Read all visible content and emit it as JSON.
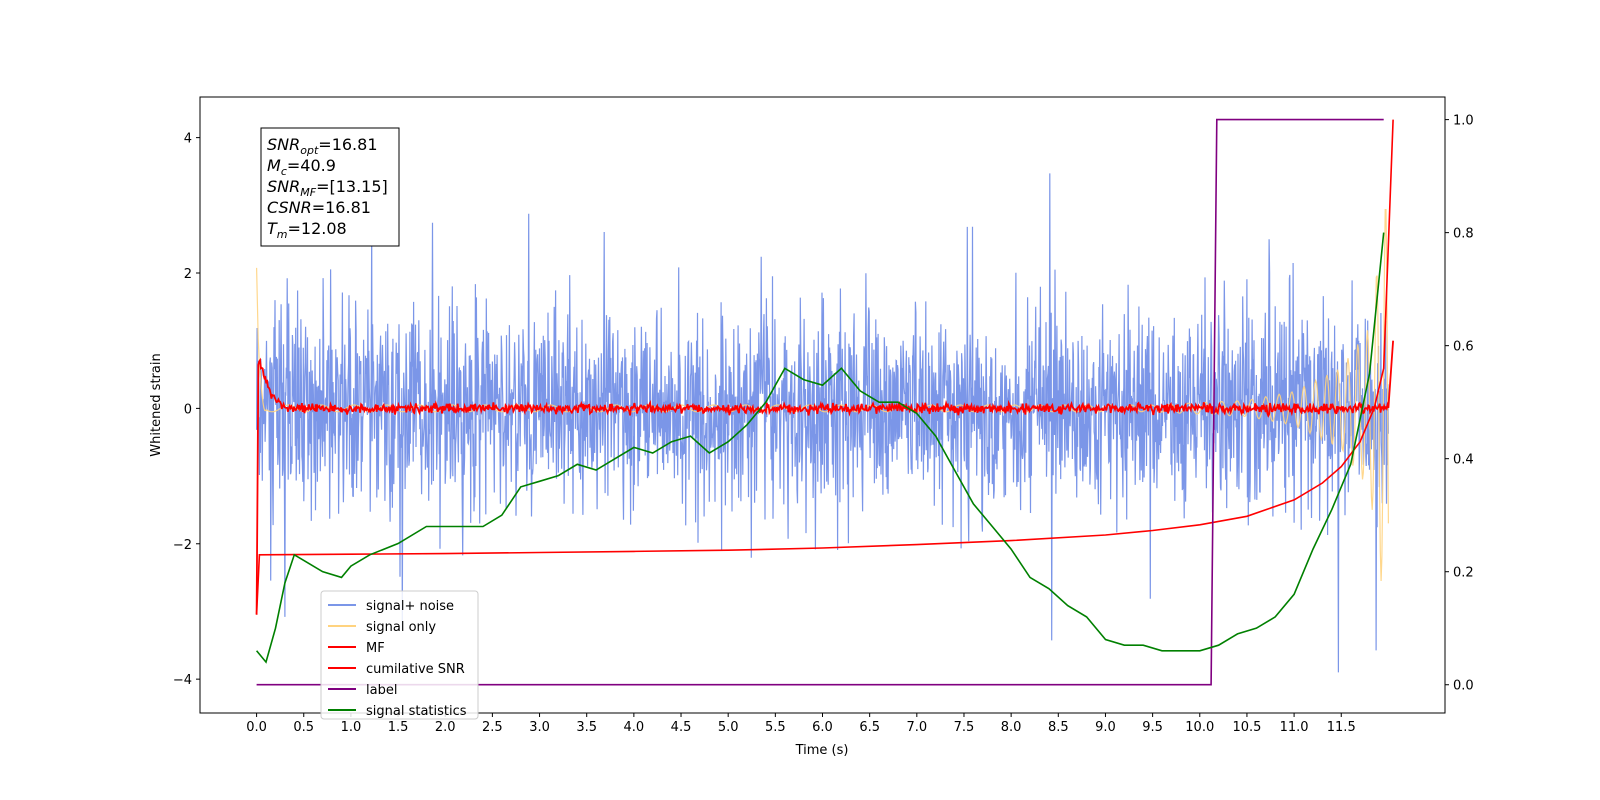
{
  "chart_data": {
    "type": "line",
    "xlabel": "Time (s)",
    "ylabel": "Whitened strain",
    "xlim": [
      -0.6,
      12.6
    ],
    "ylim": [
      -4.5,
      4.6
    ],
    "ylim_right": [
      -0.05,
      1.04
    ],
    "x_ticks": [
      "0.0",
      "0.5",
      "1.0",
      "1.5",
      "2.0",
      "2.5",
      "3.0",
      "3.5",
      "4.0",
      "4.5",
      "5.0",
      "5.5",
      "6.0",
      "6.5",
      "7.0",
      "7.5",
      "8.0",
      "8.5",
      "9.0",
      "9.5",
      "10.0",
      "10.5",
      "11.0",
      "11.5"
    ],
    "y_ticks": [
      "−4",
      "−2",
      "0",
      "2",
      "4"
    ],
    "y_ticks_right": [
      "0.0",
      "0.2",
      "0.4",
      "0.6",
      "0.8",
      "1.0"
    ],
    "annotation": [
      {
        "name": "SNR",
        "sub": "opt",
        "value": "=16.81"
      },
      {
        "name": "M",
        "sub": "c",
        "value": "=40.9"
      },
      {
        "name": "SNR",
        "sub": "MF",
        "value": "=[13.15]"
      },
      {
        "name": "CSNR",
        "sub": "",
        "value": "=16.81"
      },
      {
        "name": "T",
        "sub": "m",
        "value": "=12.08"
      }
    ],
    "legend_position": "lower-left",
    "series": [
      {
        "name": "signal+ noise",
        "color": "#7b96e8",
        "axis": "left",
        "style": "noise band, approx. range -3.9 to 3.6",
        "amplitude": 3.6,
        "duration": 12.0
      },
      {
        "name": "signal only",
        "color": "#ffd37f",
        "axis": "left",
        "style": "chirp, amplitude growing to about ±3.4 at 12.0 s",
        "x": [
          0,
          0.02,
          0.1,
          9.5,
          10.5,
          11.0,
          11.5,
          11.8,
          12.0
        ],
        "envelope": [
          2.1,
          1.0,
          0.05,
          0.05,
          0.12,
          0.25,
          0.6,
          1.2,
          3.4
        ]
      },
      {
        "name": "MF",
        "color": "#ff0000",
        "axis": "left",
        "style": "noisy trace around 0",
        "x": [
          0,
          0.05,
          0.15,
          0.3,
          12.0,
          12.05
        ],
        "y": [
          0.9,
          0.6,
          0.2,
          0.0,
          0.0,
          1.0
        ]
      },
      {
        "name": "cumilative SNR",
        "color": "#ff0000",
        "axis": "right",
        "x": [
          0,
          0.03,
          1,
          2,
          3,
          4,
          5,
          6,
          7,
          8,
          9,
          9.5,
          10,
          10.5,
          11,
          11.3,
          11.5,
          11.7,
          11.85,
          11.95,
          12.05
        ],
        "y": [
          0.125,
          0.23,
          0.231,
          0.232,
          0.234,
          0.236,
          0.238,
          0.242,
          0.248,
          0.255,
          0.265,
          0.273,
          0.283,
          0.298,
          0.327,
          0.357,
          0.386,
          0.43,
          0.49,
          0.56,
          1.0
        ]
      },
      {
        "name": "label",
        "color": "#800080",
        "axis": "right",
        "x": [
          0,
          10.12,
          10.18,
          11.95
        ],
        "y": [
          0.0,
          0.0,
          1.0,
          1.0
        ]
      },
      {
        "name": "signal statistics",
        "color": "#008000",
        "axis": "right",
        "x": [
          0,
          0.1,
          0.2,
          0.3,
          0.4,
          0.5,
          0.7,
          0.9,
          1.0,
          1.2,
          1.5,
          1.8,
          2.0,
          2.2,
          2.4,
          2.6,
          2.8,
          3.0,
          3.2,
          3.4,
          3.6,
          3.8,
          4.0,
          4.2,
          4.4,
          4.6,
          4.8,
          5.0,
          5.2,
          5.4,
          5.6,
          5.8,
          6.0,
          6.2,
          6.4,
          6.6,
          6.8,
          7.0,
          7.2,
          7.4,
          7.6,
          7.8,
          8.0,
          8.2,
          8.4,
          8.6,
          8.8,
          9.0,
          9.2,
          9.4,
          9.6,
          9.8,
          10.0,
          10.2,
          10.4,
          10.6,
          10.8,
          11.0,
          11.2,
          11.4,
          11.6,
          11.8,
          11.95
        ],
        "y": [
          0.06,
          0.04,
          0.1,
          0.18,
          0.23,
          0.22,
          0.2,
          0.19,
          0.21,
          0.23,
          0.25,
          0.28,
          0.28,
          0.28,
          0.28,
          0.3,
          0.35,
          0.36,
          0.37,
          0.39,
          0.38,
          0.4,
          0.42,
          0.41,
          0.43,
          0.44,
          0.41,
          0.43,
          0.46,
          0.5,
          0.56,
          0.54,
          0.53,
          0.56,
          0.52,
          0.5,
          0.5,
          0.48,
          0.44,
          0.38,
          0.32,
          0.28,
          0.24,
          0.19,
          0.17,
          0.14,
          0.12,
          0.08,
          0.07,
          0.07,
          0.06,
          0.06,
          0.06,
          0.07,
          0.09,
          0.1,
          0.12,
          0.16,
          0.24,
          0.31,
          0.39,
          0.55,
          0.8
        ]
      }
    ]
  }
}
